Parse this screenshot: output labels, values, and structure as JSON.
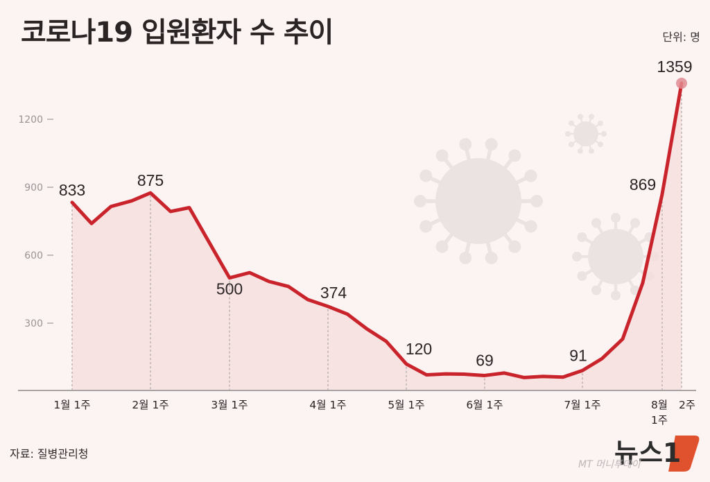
{
  "header": {
    "title": "코로나19 입원환자 수 추이",
    "unit": "단위: 명"
  },
  "footer": {
    "source": "자료: 질병관리청",
    "logo_text": "뉴스1",
    "logo_sub": "MT 머니투데이"
  },
  "colors": {
    "background": "#fcf3f3",
    "line": "#c9242b",
    "area_fill": "#f7dede",
    "highlight_dot": "#e08a8f",
    "axis": "#9c9898",
    "virus_icon": "#ebe2e2",
    "logo_accent": "#e0522e"
  },
  "chart_data": {
    "type": "line",
    "title": "코로나19 입원환자 수 추이",
    "xlabel": "",
    "ylabel": "단위: 명",
    "ylim": [
      0,
      1400
    ],
    "yticks": [
      300,
      600,
      900,
      1200
    ],
    "grid": false,
    "legend": null,
    "x_tick_labels": [
      {
        "index": 0,
        "label": "1월 1주"
      },
      {
        "index": 4,
        "label": "2월 1주"
      },
      {
        "index": 8,
        "label": "3월 1주"
      },
      {
        "index": 13,
        "label": "4월 1주"
      },
      {
        "index": 17,
        "label": "5월 1주"
      },
      {
        "index": 21,
        "label": "6월 1주"
      },
      {
        "index": 26,
        "label": "7월 1주"
      },
      {
        "index": 30,
        "label": "8월 1주"
      },
      {
        "index": 31,
        "label": "2주"
      }
    ],
    "series": [
      {
        "name": "입원환자 수",
        "values": [
          833,
          740,
          815,
          840,
          875,
          793,
          810,
          655,
          500,
          523,
          484,
          462,
          404,
          374,
          340,
          275,
          220,
          120,
          72,
          76,
          75,
          69,
          80,
          60,
          65,
          62,
          91,
          143,
          230,
          478,
          869,
          1359
        ]
      }
    ],
    "annotations": [
      {
        "index": 0,
        "label": "833"
      },
      {
        "index": 4,
        "label": "875"
      },
      {
        "index": 8,
        "label": "500"
      },
      {
        "index": 13,
        "label": "374"
      },
      {
        "index": 17,
        "label": "120"
      },
      {
        "index": 21,
        "label": "69"
      },
      {
        "index": 26,
        "label": "91"
      },
      {
        "index": 30,
        "label": "869"
      },
      {
        "index": 31,
        "label": "1359"
      }
    ],
    "x_positions": [
      104,
      132,
      160,
      190,
      217,
      246,
      273,
      302,
      331,
      360,
      388,
      416,
      444,
      473,
      501,
      529,
      557,
      586,
      615,
      643,
      669,
      699,
      727,
      756,
      783,
      812,
      840,
      868,
      898,
      927,
      955,
      983
    ]
  }
}
